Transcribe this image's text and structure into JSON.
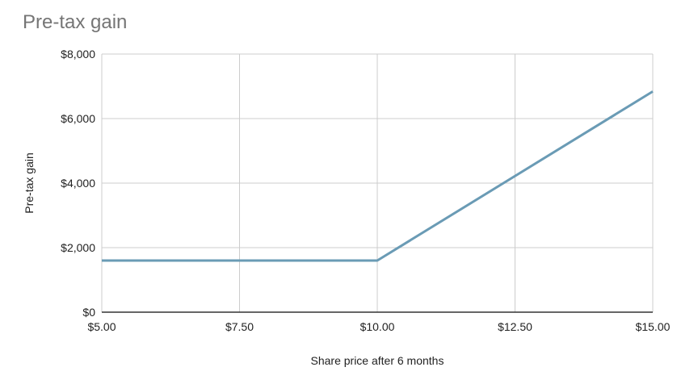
{
  "chart_data": {
    "type": "line",
    "title": "Pre-tax gain",
    "xlabel": "Share price after 6 months",
    "ylabel": "Pre-tax gain",
    "xlim": [
      5,
      15
    ],
    "ylim": [
      0,
      8000
    ],
    "x_ticks": [
      {
        "value": 5,
        "label": "$5.00"
      },
      {
        "value": 7.5,
        "label": "$7.50"
      },
      {
        "value": 10,
        "label": "$10.00"
      },
      {
        "value": 12.5,
        "label": "$12.50"
      },
      {
        "value": 15,
        "label": "$15.00"
      }
    ],
    "y_ticks": [
      {
        "value": 0,
        "label": "$0"
      },
      {
        "value": 2000,
        "label": "$2,000"
      },
      {
        "value": 4000,
        "label": "$4,000"
      },
      {
        "value": 6000,
        "label": "$6,000"
      },
      {
        "value": 8000,
        "label": "$8,000"
      }
    ],
    "grid": true,
    "legend": "none",
    "series": [
      {
        "color": "#6a9bb5",
        "x": [
          5,
          10,
          15
        ],
        "y": [
          1600,
          1600,
          6840
        ]
      }
    ]
  },
  "colors": {
    "title": "#757575",
    "axis_text": "#222222",
    "grid": "#cccccc",
    "baseline": "#333333"
  }
}
